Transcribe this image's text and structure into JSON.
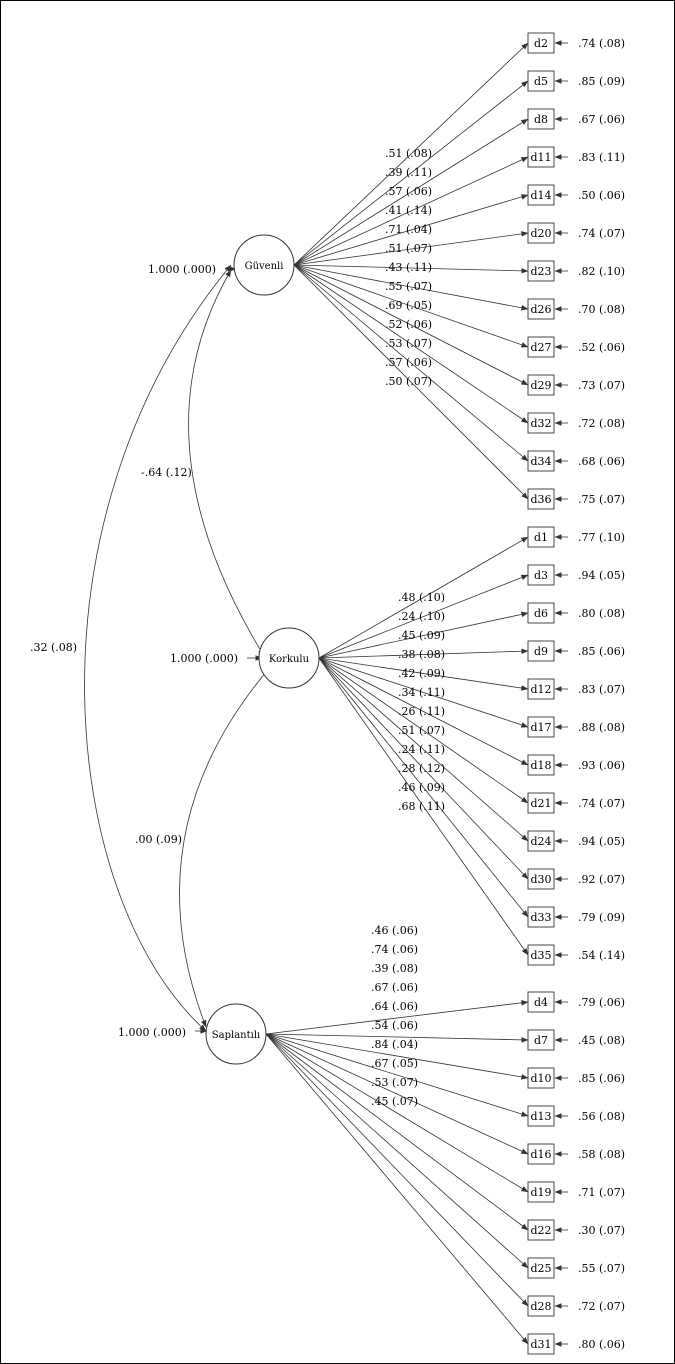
{
  "factors": [
    {
      "name": "Güvenli",
      "variance": "1.000 (.000)"
    },
    {
      "name": "Korkulu",
      "variance": "1.000 (.000)"
    },
    {
      "name": "Saplantılı",
      "variance": "1.000 (.000)"
    }
  ],
  "correlations": [
    {
      "between": [
        "Güvenli",
        "Korkulu"
      ],
      "label": "-.64 (.12)"
    },
    {
      "between": [
        "Güvenli",
        "Saplantılı"
      ],
      "label": ".32 (.08)"
    },
    {
      "between": [
        "Korkulu",
        "Saplantılı"
      ],
      "label": ".00 (.09)"
    }
  ],
  "groups": [
    {
      "factor": "Güvenli",
      "indicators": [
        {
          "name": "d2",
          "loading": ".51 (.08)",
          "error": ".74 (.08)"
        },
        {
          "name": "d5",
          "loading": ".39 (.11)",
          "error": ".85 (.09)"
        },
        {
          "name": "d8",
          "loading": ".57 (.06)",
          "error": ".67 (.06)"
        },
        {
          "name": "d11",
          "loading": ".41 (.14)",
          "error": ".83 (.11)"
        },
        {
          "name": "d14",
          "loading": ".71 (.04)",
          "error": ".50 (.06)"
        },
        {
          "name": "d20",
          "loading": ".51 (.07)",
          "error": ".74 (.07)"
        },
        {
          "name": "d23",
          "loading": ".43 (.11)",
          "error": ".82 (.10)"
        },
        {
          "name": "d26",
          "loading": ".55 (.07)",
          "error": ".70 (.08)"
        },
        {
          "name": "d27",
          "loading": ".69 (.05)",
          "error": ".52 (.06)"
        },
        {
          "name": "d29",
          "loading": ".52 (.06)",
          "error": ".73 (.07)"
        },
        {
          "name": "d32",
          "loading": ".53 (.07)",
          "error": ".72 (.08)"
        },
        {
          "name": "d34",
          "loading": ".57 (.06)",
          "error": ".68 (.06)"
        },
        {
          "name": "d36",
          "loading": ".50 (.07)",
          "error": ".75 (.07)"
        }
      ]
    },
    {
      "factor": "Korkulu",
      "indicators": [
        {
          "name": "d1",
          "loading": ".48 (.10)",
          "error": ".77 (.10)"
        },
        {
          "name": "d3",
          "loading": ".24 (.10)",
          "error": ".94 (.05)"
        },
        {
          "name": "d6",
          "loading": ".45 (.09)",
          "error": ".80 (.08)"
        },
        {
          "name": "d9",
          "loading": ".38 (.08)",
          "error": ".85 (.06)"
        },
        {
          "name": "d12",
          "loading": ".42 (.09)",
          "error": ".83 (.07)"
        },
        {
          "name": "d17",
          "loading": ".34 (.11)",
          "error": ".88 (.08)"
        },
        {
          "name": "d18",
          "loading": ".26 (.11)",
          "error": ".93 (.06)"
        },
        {
          "name": "d21",
          "loading": ".51 (.07)",
          "error": ".74 (.07)"
        },
        {
          "name": "d24",
          "loading": ".24 (.11)",
          "error": ".94 (.05)"
        },
        {
          "name": "d30",
          "loading": ".28 (.12)",
          "error": ".92 (.07)"
        },
        {
          "name": "d33",
          "loading": ".46 (.09)",
          "error": ".79 (.09)"
        },
        {
          "name": "d35",
          "loading": ".68 (.11)",
          "error": ".54 (.14)"
        }
      ]
    },
    {
      "factor": "Saplantılı",
      "indicators": [
        {
          "name": "d4",
          "loading": ".46 (.06)",
          "error": ".79 (.06)"
        },
        {
          "name": "d7",
          "loading": ".74 (.06)",
          "error": ".45 (.08)"
        },
        {
          "name": "d10",
          "loading": ".39 (.08)",
          "error": ".85 (.06)"
        },
        {
          "name": "d13",
          "loading": ".67 (.06)",
          "error": ".56 (.08)"
        },
        {
          "name": "d16",
          "loading": ".64 (.06)",
          "error": ".58 (.08)"
        },
        {
          "name": "d19",
          "loading": ".54 (.06)",
          "error": ".71 (.07)"
        },
        {
          "name": "d22",
          "loading": ".84 (.04)",
          "error": ".30 (.07)"
        },
        {
          "name": "d25",
          "loading": ".67 (.05)",
          "error": ".55 (.07)"
        },
        {
          "name": "d28",
          "loading": ".53 (.07)",
          "error": ".72 (.07)"
        },
        {
          "name": "d31",
          "loading": ".45 (.07)",
          "error": ".80 (.06)"
        }
      ]
    }
  ]
}
